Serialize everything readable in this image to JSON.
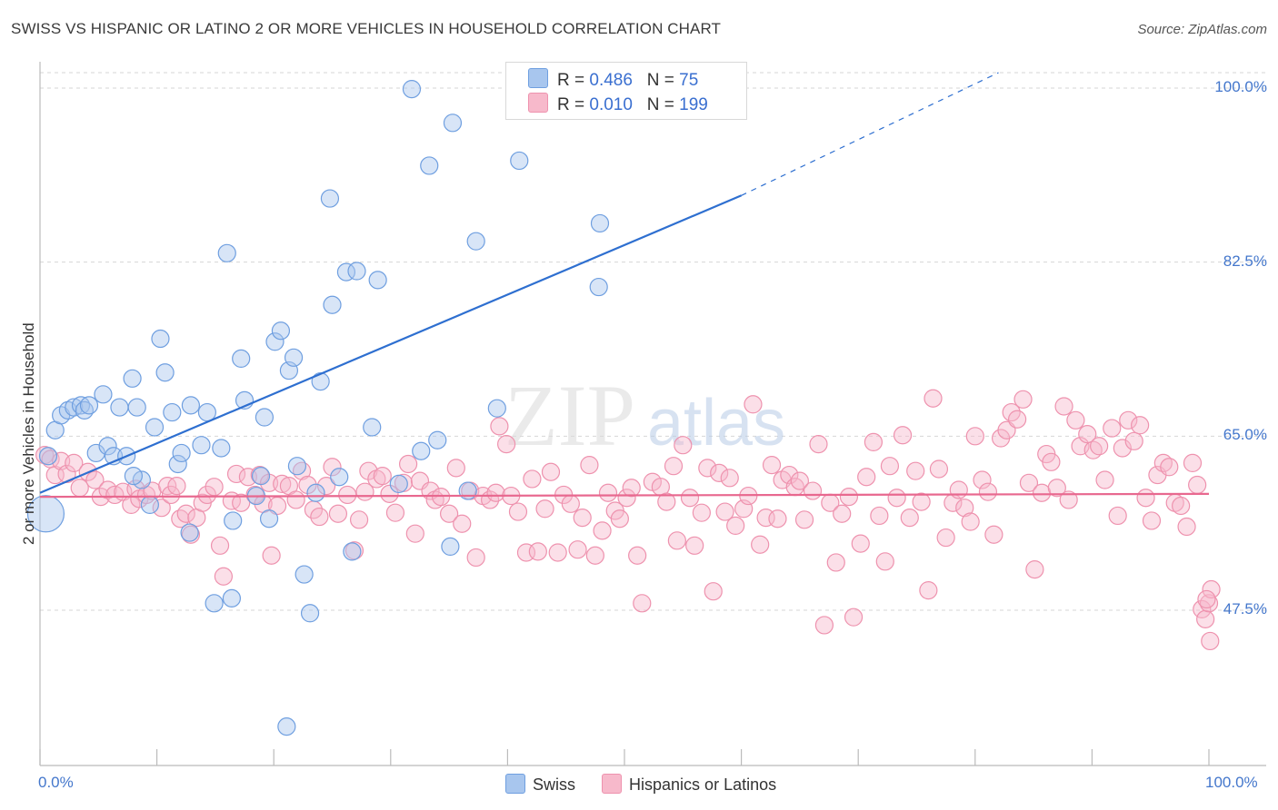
{
  "header": {
    "title": "SWISS VS HISPANIC OR LATINO 2 OR MORE VEHICLES IN HOUSEHOLD CORRELATION CHART",
    "source": "Source: ZipAtlas.com"
  },
  "legend_top": {
    "rows": [
      {
        "r_label": "R =",
        "r_value": "0.486",
        "n_label": "N =",
        "n_value": "75"
      },
      {
        "r_label": "R =",
        "r_value": "0.010",
        "n_label": "N =",
        "n_value": "199"
      }
    ]
  },
  "legend_bottom": {
    "items": [
      "Swiss",
      "Hispanics or Latinos"
    ]
  },
  "axes": {
    "y_label": "2 or more Vehicles in Household",
    "y_ticks": [
      "100.0%",
      "82.5%",
      "65.0%",
      "47.5%"
    ],
    "x_ticks": [
      "0.0%",
      "100.0%"
    ]
  },
  "colors": {
    "swiss_fill": "#a8c6ee",
    "swiss_stroke": "#6f9fe0",
    "swiss_line": "#2e6fd0",
    "hisp_fill": "#f7b9cb",
    "hisp_stroke": "#ee92ae",
    "hisp_line": "#e8688f",
    "tick_text": "#4477cc",
    "grid": "#d6d6d6"
  },
  "chart_data": {
    "type": "scatter",
    "xlim": [
      0,
      100
    ],
    "ylim": [
      32,
      102
    ],
    "y_gridlines": [
      100.0,
      82.5,
      65.0,
      47.5
    ],
    "grid": true,
    "legend_placement": "top-center",
    "series": [
      {
        "name": "Swiss",
        "r": 0.486,
        "n": 75,
        "trend": {
          "x0": 0,
          "y0": 59.3,
          "x1": 60,
          "y1": 89.2,
          "dash_to_x": 82,
          "dash_to_y": 100.0
        },
        "points": [
          [
            0.5,
            57.2
          ],
          [
            0.7,
            63.0
          ],
          [
            1.3,
            65.6
          ],
          [
            1.8,
            67.1
          ],
          [
            2.4,
            67.6
          ],
          [
            2.9,
            67.9
          ],
          [
            3.5,
            68.1
          ],
          [
            3.8,
            67.6
          ],
          [
            4.2,
            68.1
          ],
          [
            4.8,
            63.3
          ],
          [
            5.4,
            69.2
          ],
          [
            5.8,
            64.0
          ],
          [
            6.3,
            63.0
          ],
          [
            6.8,
            67.9
          ],
          [
            7.4,
            63.0
          ],
          [
            7.9,
            70.8
          ],
          [
            8.3,
            67.9
          ],
          [
            8.7,
            60.6
          ],
          [
            9.4,
            58.1
          ],
          [
            9.8,
            65.9
          ],
          [
            10.3,
            74.8
          ],
          [
            10.7,
            71.4
          ],
          [
            11.3,
            67.4
          ],
          [
            11.8,
            62.2
          ],
          [
            12.1,
            63.3
          ],
          [
            12.8,
            55.3
          ],
          [
            12.9,
            68.1
          ],
          [
            13.8,
            64.1
          ],
          [
            14.3,
            67.4
          ],
          [
            14.9,
            48.2
          ],
          [
            15.5,
            63.8
          ],
          [
            16.0,
            83.4
          ],
          [
            16.4,
            48.7
          ],
          [
            17.2,
            72.8
          ],
          [
            17.5,
            68.6
          ],
          [
            18.5,
            59.0
          ],
          [
            18.9,
            61.0
          ],
          [
            19.2,
            66.9
          ],
          [
            19.6,
            56.7
          ],
          [
            20.1,
            74.5
          ],
          [
            20.6,
            75.6
          ],
          [
            21.1,
            35.8
          ],
          [
            21.3,
            71.6
          ],
          [
            21.7,
            72.9
          ],
          [
            22.6,
            51.1
          ],
          [
            23.1,
            47.2
          ],
          [
            23.6,
            59.3
          ],
          [
            24.0,
            70.5
          ],
          [
            24.8,
            88.9
          ],
          [
            25.0,
            78.2
          ],
          [
            25.6,
            60.9
          ],
          [
            26.2,
            81.5
          ],
          [
            26.7,
            53.4
          ],
          [
            27.1,
            81.6
          ],
          [
            28.4,
            65.9
          ],
          [
            28.9,
            80.7
          ],
          [
            30.7,
            60.2
          ],
          [
            31.8,
            99.9
          ],
          [
            32.6,
            63.5
          ],
          [
            33.3,
            92.2
          ],
          [
            34.0,
            64.6
          ],
          [
            35.1,
            53.9
          ],
          [
            35.3,
            96.5
          ],
          [
            36.6,
            59.5
          ],
          [
            37.3,
            84.6
          ],
          [
            39.1,
            67.8
          ],
          [
            41.0,
            92.7
          ],
          [
            45.4,
            99.9
          ],
          [
            47.2,
            100.2
          ],
          [
            47.8,
            80.0
          ],
          [
            47.9,
            86.4
          ],
          [
            48.2,
            100.0
          ],
          [
            8.0,
            61.0
          ],
          [
            22.0,
            62.0
          ],
          [
            16.5,
            56.5
          ]
        ]
      },
      {
        "name": "Hispanics or Latinos",
        "r": 0.01,
        "n": 199,
        "trend": {
          "x0": 0,
          "y0": 58.9,
          "x1": 100,
          "y1": 59.2
        },
        "points": [
          [
            0.4,
            63.1
          ],
          [
            0.9,
            62.7
          ],
          [
            1.3,
            61.1
          ],
          [
            1.8,
            62.5
          ],
          [
            2.3,
            61.2
          ],
          [
            2.9,
            62.3
          ],
          [
            3.4,
            59.8
          ],
          [
            4.1,
            61.4
          ],
          [
            4.7,
            60.6
          ],
          [
            5.2,
            58.9
          ],
          [
            5.8,
            59.6
          ],
          [
            6.4,
            59.1
          ],
          [
            7.1,
            59.4
          ],
          [
            7.8,
            58.1
          ],
          [
            8.2,
            59.7
          ],
          [
            8.5,
            58.7
          ],
          [
            9.1,
            59.1
          ],
          [
            9.6,
            59.5
          ],
          [
            10.4,
            57.8
          ],
          [
            10.9,
            60.0
          ],
          [
            11.2,
            59.1
          ],
          [
            11.7,
            60.0
          ],
          [
            12.0,
            56.7
          ],
          [
            12.5,
            57.2
          ],
          [
            12.9,
            55.1
          ],
          [
            13.4,
            56.8
          ],
          [
            13.9,
            58.3
          ],
          [
            14.3,
            59.1
          ],
          [
            14.9,
            59.9
          ],
          [
            15.4,
            54.0
          ],
          [
            15.7,
            50.9
          ],
          [
            16.4,
            58.5
          ],
          [
            16.8,
            61.2
          ],
          [
            17.2,
            58.3
          ],
          [
            17.8,
            60.9
          ],
          [
            18.4,
            59.1
          ],
          [
            18.8,
            61.1
          ],
          [
            19.1,
            58.2
          ],
          [
            19.6,
            60.3
          ],
          [
            19.8,
            53.0
          ],
          [
            20.3,
            58.0
          ],
          [
            20.7,
            60.2
          ],
          [
            21.3,
            60.0
          ],
          [
            21.9,
            58.6
          ],
          [
            22.4,
            61.5
          ],
          [
            22.9,
            60.1
          ],
          [
            23.4,
            57.6
          ],
          [
            23.9,
            56.9
          ],
          [
            24.5,
            60.0
          ],
          [
            25.0,
            61.9
          ],
          [
            25.5,
            57.2
          ],
          [
            26.3,
            59.1
          ],
          [
            26.9,
            53.5
          ],
          [
            27.3,
            56.6
          ],
          [
            27.8,
            59.4
          ],
          [
            28.1,
            61.5
          ],
          [
            28.8,
            60.7
          ],
          [
            29.3,
            61.0
          ],
          [
            29.9,
            59.2
          ],
          [
            30.4,
            57.3
          ],
          [
            31.1,
            60.3
          ],
          [
            31.5,
            62.2
          ],
          [
            32.1,
            55.2
          ],
          [
            32.5,
            60.5
          ],
          [
            33.4,
            59.5
          ],
          [
            33.8,
            58.6
          ],
          [
            34.3,
            58.9
          ],
          [
            35.0,
            57.2
          ],
          [
            35.6,
            61.8
          ],
          [
            36.1,
            56.2
          ],
          [
            36.8,
            59.5
          ],
          [
            37.3,
            52.8
          ],
          [
            37.9,
            59.0
          ],
          [
            38.5,
            58.6
          ],
          [
            39.0,
            59.3
          ],
          [
            39.3,
            66.0
          ],
          [
            39.9,
            64.2
          ],
          [
            40.3,
            59.0
          ],
          [
            40.9,
            57.4
          ],
          [
            41.6,
            53.3
          ],
          [
            42.1,
            60.7
          ],
          [
            42.6,
            53.4
          ],
          [
            43.2,
            57.7
          ],
          [
            43.7,
            61.4
          ],
          [
            44.3,
            53.3
          ],
          [
            44.8,
            59.1
          ],
          [
            45.4,
            58.2
          ],
          [
            46.0,
            53.6
          ],
          [
            46.4,
            56.8
          ],
          [
            47.0,
            62.1
          ],
          [
            47.5,
            53.0
          ],
          [
            48.1,
            55.5
          ],
          [
            48.6,
            59.3
          ],
          [
            49.2,
            57.5
          ],
          [
            49.6,
            56.7
          ],
          [
            50.2,
            58.8
          ],
          [
            50.6,
            59.8
          ],
          [
            51.1,
            53.0
          ],
          [
            51.5,
            48.2
          ],
          [
            52.4,
            60.4
          ],
          [
            53.1,
            59.9
          ],
          [
            53.6,
            58.4
          ],
          [
            54.2,
            62.0
          ],
          [
            54.5,
            54.5
          ],
          [
            55.0,
            64.1
          ],
          [
            55.6,
            58.8
          ],
          [
            56.0,
            54.0
          ],
          [
            56.6,
            57.3
          ],
          [
            57.1,
            61.8
          ],
          [
            57.6,
            49.4
          ],
          [
            58.1,
            61.3
          ],
          [
            58.6,
            57.4
          ],
          [
            59.0,
            60.8
          ],
          [
            59.5,
            56.0
          ],
          [
            60.2,
            57.7
          ],
          [
            60.6,
            59.0
          ],
          [
            61.0,
            68.2
          ],
          [
            61.6,
            54.1
          ],
          [
            62.1,
            56.8
          ],
          [
            62.6,
            62.1
          ],
          [
            63.1,
            56.7
          ],
          [
            63.5,
            60.6
          ],
          [
            64.1,
            61.1
          ],
          [
            64.6,
            59.9
          ],
          [
            65.0,
            60.5
          ],
          [
            65.4,
            56.6
          ],
          [
            66.1,
            59.5
          ],
          [
            66.6,
            64.2
          ],
          [
            67.1,
            46.0
          ],
          [
            67.6,
            58.3
          ],
          [
            68.1,
            52.3
          ],
          [
            68.6,
            57.2
          ],
          [
            69.2,
            58.9
          ],
          [
            69.6,
            46.8
          ],
          [
            70.2,
            54.2
          ],
          [
            70.7,
            60.9
          ],
          [
            71.3,
            64.4
          ],
          [
            71.8,
            57.0
          ],
          [
            72.3,
            52.4
          ],
          [
            72.7,
            62.0
          ],
          [
            73.3,
            58.8
          ],
          [
            73.8,
            65.1
          ],
          [
            74.4,
            56.8
          ],
          [
            74.9,
            61.5
          ],
          [
            75.4,
            58.4
          ],
          [
            76.0,
            49.5
          ],
          [
            76.4,
            68.8
          ],
          [
            76.9,
            61.7
          ],
          [
            77.5,
            54.8
          ],
          [
            78.1,
            58.3
          ],
          [
            78.6,
            59.6
          ],
          [
            79.1,
            57.8
          ],
          [
            79.6,
            56.4
          ],
          [
            80.0,
            65.0
          ],
          [
            80.6,
            60.6
          ],
          [
            81.1,
            59.4
          ],
          [
            81.6,
            55.1
          ],
          [
            82.2,
            64.8
          ],
          [
            82.7,
            65.6
          ],
          [
            83.1,
            67.4
          ],
          [
            83.6,
            66.7
          ],
          [
            84.1,
            68.7
          ],
          [
            84.6,
            60.3
          ],
          [
            85.1,
            51.6
          ],
          [
            85.7,
            59.3
          ],
          [
            86.1,
            63.2
          ],
          [
            86.5,
            62.4
          ],
          [
            87.0,
            59.8
          ],
          [
            87.6,
            68.0
          ],
          [
            88.0,
            58.6
          ],
          [
            88.6,
            66.6
          ],
          [
            89.0,
            64.0
          ],
          [
            89.6,
            65.2
          ],
          [
            90.1,
            63.6
          ],
          [
            90.6,
            64.0
          ],
          [
            91.1,
            60.6
          ],
          [
            91.7,
            65.8
          ],
          [
            92.2,
            57.0
          ],
          [
            92.6,
            63.8
          ],
          [
            93.1,
            66.6
          ],
          [
            93.6,
            64.5
          ],
          [
            94.1,
            66.1
          ],
          [
            94.6,
            58.8
          ],
          [
            95.1,
            56.5
          ],
          [
            95.6,
            61.1
          ],
          [
            96.1,
            62.3
          ],
          [
            96.6,
            61.9
          ],
          [
            97.1,
            58.3
          ],
          [
            97.6,
            58.0
          ],
          [
            98.1,
            55.9
          ],
          [
            98.6,
            62.3
          ],
          [
            99.0,
            60.1
          ],
          [
            99.4,
            47.6
          ],
          [
            99.7,
            46.6
          ],
          [
            100.0,
            48.2
          ],
          [
            100.2,
            49.6
          ],
          [
            99.8,
            48.6
          ],
          [
            100.1,
            44.4
          ]
        ]
      }
    ]
  }
}
